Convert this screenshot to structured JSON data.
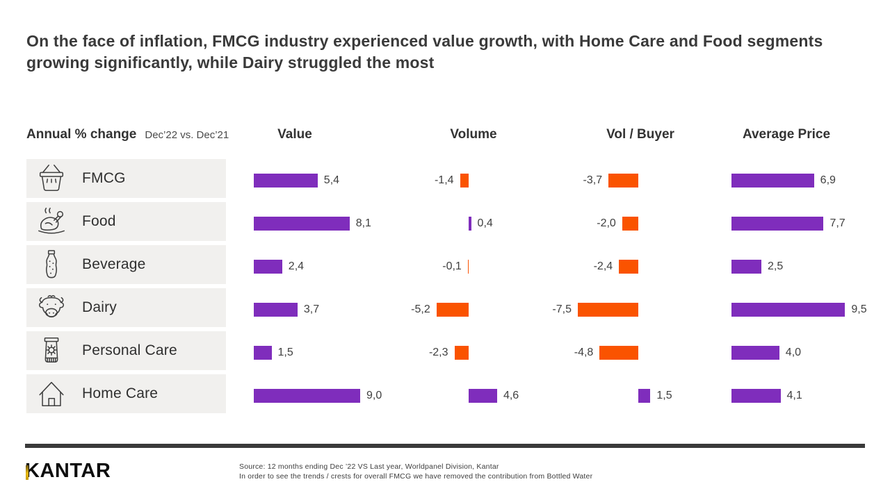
{
  "title": "On the face of inflation, FMCG industry experienced value growth, with Home Care and Food segments growing significantly, while Dairy struggled the most",
  "header": {
    "row_label": "Annual % change",
    "row_sublabel": "Dec’22 vs. Dec’21",
    "columns": [
      "Value",
      "Volume",
      "Vol / Buyer",
      "Average Price"
    ]
  },
  "chart_data": {
    "type": "bar",
    "orientation": "horizontal",
    "title": "Annual % change Dec’22 vs. Dec’21",
    "categories": [
      "FMCG",
      "Food",
      "Beverage",
      "Dairy",
      "Personal Care",
      "Home Care"
    ],
    "category_icons": [
      "basket-icon",
      "roast-chicken-icon",
      "soda-bottle-icon",
      "cow-icon",
      "sunscreen-tube-icon",
      "house-icon"
    ],
    "series": [
      {
        "name": "Value",
        "values": [
          5.4,
          8.1,
          2.4,
          3.7,
          1.5,
          9.0
        ]
      },
      {
        "name": "Volume",
        "values": [
          -1.4,
          0.4,
          -0.1,
          -5.2,
          -2.3,
          4.6
        ]
      },
      {
        "name": "Vol / Buyer",
        "values": [
          -3.7,
          -2.0,
          -2.4,
          -7.5,
          -4.8,
          1.5
        ]
      },
      {
        "name": "Average Price",
        "values": [
          6.9,
          7.7,
          2.5,
          9.5,
          4.0,
          4.1
        ]
      }
    ],
    "positive_color": "#7F2DBC",
    "negative_color": "#FA5300",
    "value_format": "comma-decimal-1dp",
    "grid": false,
    "legend": "none"
  },
  "footer": {
    "brand": "KANTAR",
    "source_line1": "Source: 12 months ending Dec ’22 VS Last year, Worldpanel Division, Kantar",
    "source_line2": "In order to see the trends / crests for overall FMCG we have removed the contribution from Bottled Water"
  }
}
